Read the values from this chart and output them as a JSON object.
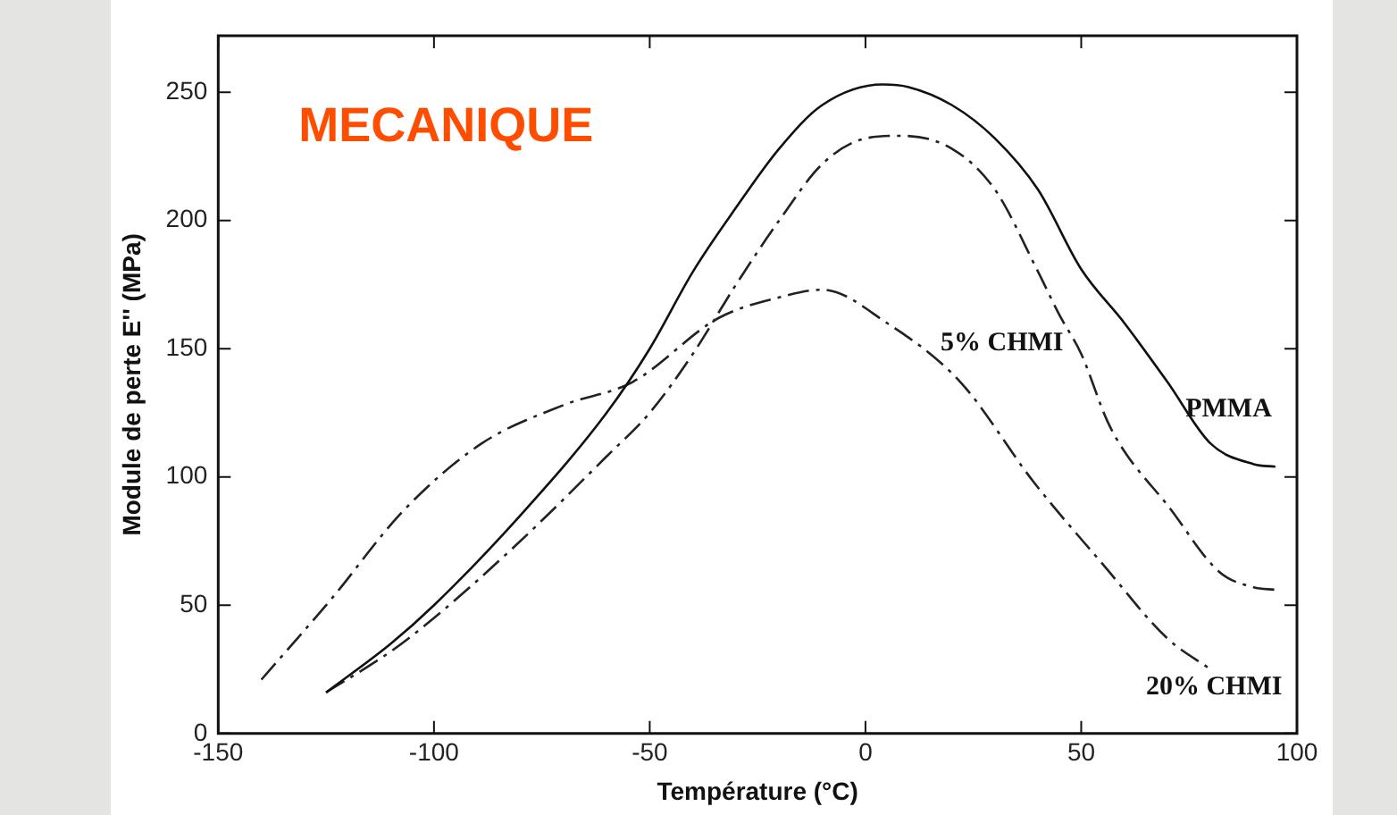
{
  "chart_data": {
    "type": "line",
    "title": "MECANIQUE",
    "xlabel": "Température (°C)",
    "ylabel": "Module de perte E'' (MPa)",
    "xlim": [
      -150,
      100
    ],
    "ylim": [
      0,
      272
    ],
    "xticks": [
      -150,
      -100,
      -50,
      0,
      50,
      100
    ],
    "yticks": [
      0,
      50,
      100,
      150,
      200,
      250
    ],
    "grid": false,
    "legend": false,
    "marker": "none",
    "series": [
      {
        "name": "PMMA",
        "color": "#111111",
        "line_style": "solid",
        "x": [
          -125,
          -110,
          -100,
          -80,
          -60,
          -50,
          -40,
          -30,
          -20,
          -10,
          4,
          10,
          20,
          30,
          40,
          50,
          60,
          70,
          80,
          90,
          95
        ],
        "values": [
          16,
          35,
          50,
          85,
          125,
          150,
          180,
          205,
          228,
          245,
          253,
          252,
          245,
          232,
          212,
          181,
          160,
          137,
          113,
          105,
          104
        ]
      },
      {
        "name": "5% CHMI",
        "color": "#222222",
        "line_style": "dashed",
        "x": [
          -125,
          -110,
          -100,
          -80,
          -60,
          -50,
          -40,
          -30,
          -20,
          -10,
          0,
          8,
          20,
          30,
          40,
          45,
          50,
          56,
          60,
          70,
          82,
          90,
          95
        ],
        "values": [
          16,
          32,
          45,
          75,
          108,
          125,
          148,
          175,
          200,
          222,
          232,
          233,
          228,
          212,
          180,
          163,
          148,
          122,
          110,
          89,
          63,
          57,
          56
        ]
      },
      {
        "name": "20% CHMI",
        "color": "#222222",
        "line_style": "dashed",
        "x": [
          -140,
          -124,
          -107,
          -89,
          -70,
          -54,
          -34,
          -20,
          -10,
          5,
          22,
          39,
          55,
          70,
          80
        ],
        "values": [
          21,
          52,
          87,
          113,
          128,
          137,
          162,
          170,
          173,
          160,
          137,
          98,
          66,
          37,
          25
        ]
      }
    ]
  }
}
